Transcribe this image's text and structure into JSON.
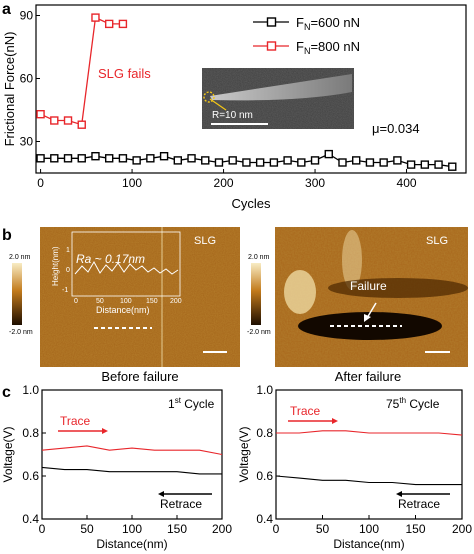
{
  "panels": {
    "a": "a",
    "b": "b",
    "c": "c"
  },
  "panel_a": {
    "annotation_fail": "SLG fails",
    "mu_label": "μ=0.034",
    "inset_label": "R=10 nm"
  },
  "panel_b": {
    "left": {
      "caption": "Before failure",
      "tag": "SLG",
      "ra_label": "Ra ~ 0.17nm",
      "colorbar_top": "2.0 nm",
      "colorbar_bottom": "-2.0 nm",
      "inset_xlabel": "Distance(nm)",
      "inset_ylabel": "Height(nm)",
      "inset_xticks": [
        "0",
        "50",
        "100",
        "150",
        "200"
      ],
      "inset_yticks": [
        "-1",
        "0",
        "1"
      ]
    },
    "right": {
      "caption": "After failure",
      "tag": "SLG",
      "failure_label": "Failure",
      "colorbar_top": "2.0 nm",
      "colorbar_bottom": "-2.0 nm"
    }
  },
  "colors": {
    "black_series": "#000000",
    "red_series": "#e8262b",
    "afm_dark": "#2a1400",
    "afm_mid": "#b06a12",
    "afm_light": "#f5e6b8"
  },
  "chart_data": [
    {
      "type": "line",
      "xlabel": "Cycles",
      "ylabel": "Frictional Force(nN)",
      "xlim": [
        -5,
        465
      ],
      "ylim": [
        15,
        95
      ],
      "xticks": [
        "0",
        "100",
        "200",
        "300",
        "400"
      ],
      "yticks": [
        "30",
        "60",
        "90"
      ],
      "legend_position": "top-right",
      "series": [
        {
          "name": "F_N=600 nN",
          "legend_main": "F",
          "legend_sub": "N",
          "legend_rest": "=600 nN",
          "color": "#000000",
          "marker": "open-square",
          "x": [
            0,
            15,
            30,
            45,
            60,
            75,
            90,
            105,
            120,
            135,
            150,
            165,
            180,
            195,
            210,
            225,
            240,
            255,
            270,
            285,
            300,
            315,
            330,
            345,
            360,
            375,
            390,
            405,
            420,
            435,
            450
          ],
          "y": [
            22,
            22,
            22,
            22,
            23,
            22,
            22,
            21,
            22,
            23,
            21,
            22,
            21,
            20,
            21,
            20,
            20,
            20,
            21,
            20,
            21,
            24,
            20,
            21,
            20,
            20,
            21,
            19,
            19,
            19,
            18
          ]
        },
        {
          "name": "F_N=800 nN",
          "legend_main": "F",
          "legend_sub": "N",
          "legend_rest": "=800 nN",
          "color": "#e8262b",
          "marker": "open-square",
          "x": [
            0,
            15,
            30,
            45,
            60,
            75,
            90
          ],
          "y": [
            43,
            40,
            40,
            38,
            89,
            86,
            86
          ]
        }
      ]
    },
    {
      "type": "line",
      "title_main": "1",
      "title_sup": "st",
      "title_rest": " Cycle",
      "xlabel": "Distance(nm)",
      "ylabel": "Voltage(V)",
      "xlim": [
        0,
        200
      ],
      "ylim": [
        0.4,
        1.0
      ],
      "xticks": [
        "0",
        "50",
        "100",
        "150",
        "200"
      ],
      "yticks": [
        "0.4",
        "0.6",
        "0.8",
        "1.0"
      ],
      "series": [
        {
          "name": "Trace",
          "color": "#e8262b",
          "x": [
            0,
            25,
            50,
            75,
            100,
            125,
            150,
            175,
            200
          ],
          "y": [
            0.72,
            0.73,
            0.74,
            0.72,
            0.73,
            0.72,
            0.72,
            0.72,
            0.7
          ]
        },
        {
          "name": "Retrace",
          "color": "#000000",
          "x": [
            0,
            25,
            50,
            75,
            100,
            125,
            150,
            175,
            200
          ],
          "y": [
            0.64,
            0.63,
            0.63,
            0.62,
            0.62,
            0.62,
            0.62,
            0.61,
            0.61
          ]
        }
      ]
    },
    {
      "type": "line",
      "title_main": "75",
      "title_sup": "th",
      "title_rest": " Cycle",
      "xlabel": "Distance(nm)",
      "ylabel": "Voltage(V)",
      "xlim": [
        0,
        200
      ],
      "ylim": [
        0.4,
        1.0
      ],
      "xticks": [
        "0",
        "50",
        "100",
        "150",
        "200"
      ],
      "yticks": [
        "0.4",
        "0.6",
        "0.8",
        "1.0"
      ],
      "series": [
        {
          "name": "Trace",
          "color": "#e8262b",
          "x": [
            0,
            25,
            50,
            75,
            100,
            125,
            150,
            175,
            200
          ],
          "y": [
            0.8,
            0.8,
            0.81,
            0.81,
            0.8,
            0.8,
            0.8,
            0.8,
            0.79
          ]
        },
        {
          "name": "Retrace",
          "color": "#000000",
          "x": [
            0,
            25,
            50,
            75,
            100,
            125,
            150,
            175,
            200
          ],
          "y": [
            0.6,
            0.59,
            0.58,
            0.58,
            0.57,
            0.57,
            0.56,
            0.56,
            0.56
          ]
        }
      ]
    }
  ]
}
